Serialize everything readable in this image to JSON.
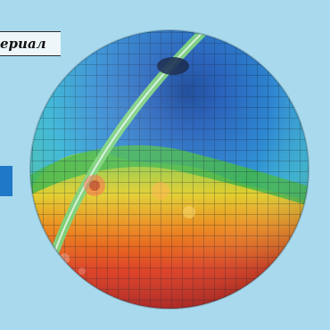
{
  "caption": {
    "text": "ериал"
  },
  "colors": {
    "background": "#a8d9ec",
    "side_tab": "#1f78c8",
    "globe_north": "#1b5fb8",
    "globe_mid": "#2fa7cf",
    "globe_green": "#3fb64a",
    "globe_yellow": "#e8d22a",
    "globe_orange": "#f08a1e",
    "globe_red": "#e02a1c",
    "grid_line": "#1a2b3a",
    "track_band": "#7bd37a"
  },
  "image": {
    "subject": "globe-visualization"
  }
}
